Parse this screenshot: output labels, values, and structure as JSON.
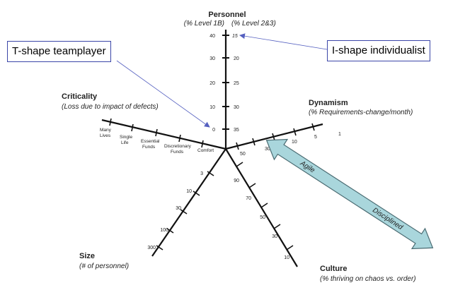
{
  "personnel": {
    "title": "Personnel",
    "subtitle_left": "(% Level 1B)",
    "subtitle_right": "(% Level 2&3)",
    "left_ticks": [
      "40",
      "30",
      "20",
      "10",
      "0"
    ],
    "right_ticks": [
      "15",
      "20",
      "25",
      "30",
      "35"
    ]
  },
  "dynamism": {
    "title": "Dynamism",
    "subtitle": "(% Requirements-change/month)",
    "ticks": [
      "1",
      "5",
      "10",
      "30",
      "50"
    ]
  },
  "criticality": {
    "title": "Criticality",
    "subtitle": "(Loss due to impact of defects)",
    "ticks": [
      {
        "line1": "Many",
        "line2": "Lives"
      },
      {
        "line1": "Single",
        "line2": "Life"
      },
      {
        "line1": "Essential",
        "line2": "Funds"
      },
      {
        "line1": "Discretionary",
        "line2": "Funds"
      },
      {
        "line1": "Comfort",
        "line2": ""
      }
    ]
  },
  "size": {
    "title": "Size",
    "subtitle": "(# of personnel)",
    "ticks": [
      "3",
      "10",
      "30",
      "100",
      "300"
    ]
  },
  "culture": {
    "title": "Culture",
    "subtitle": "(% thriving on chaos vs. order)",
    "ticks": [
      "90",
      "70",
      "50",
      "30",
      "10"
    ]
  },
  "callouts": {
    "left": "T-shape teamplayer",
    "right": "I-shape individualist"
  },
  "arrow": {
    "label_left": "Agile",
    "label_right": "Disciplined",
    "fill_color": "#a9d6dc",
    "stroke_color": "#4a6b72"
  },
  "colors": {
    "axis": "#111111",
    "callout_border": "#3b46a8",
    "callout_line": "#5560c0"
  }
}
